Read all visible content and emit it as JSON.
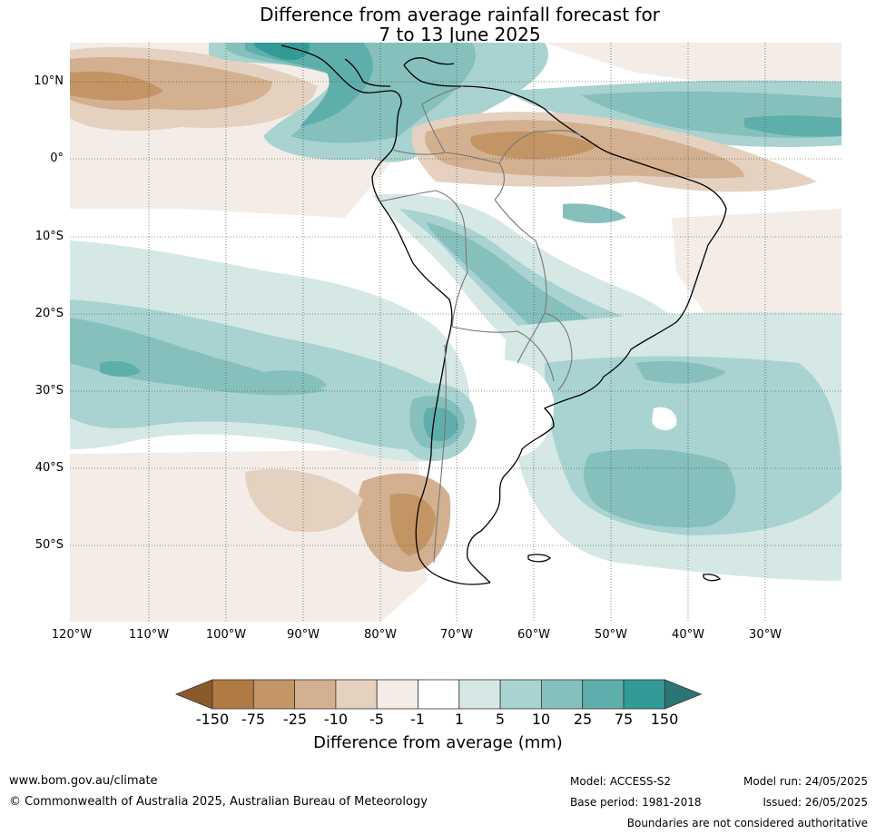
{
  "title": {
    "line1": "Difference from average rainfall forecast for",
    "line2": "7 to 13 June 2025"
  },
  "map": {
    "lat_labels": [
      "10°N",
      "0°",
      "10°S",
      "20°S",
      "30°S",
      "40°S",
      "50°S"
    ],
    "lon_labels": [
      "120°W",
      "110°W",
      "100°W",
      "90°W",
      "80°W",
      "70°W",
      "60°W",
      "50°W",
      "40°W",
      "30°W"
    ]
  },
  "colorbar": {
    "ticks": [
      "-150",
      "-75",
      "-25",
      "-10",
      "-5",
      "-1",
      "1",
      "5",
      "10",
      "25",
      "75",
      "150"
    ],
    "colors": [
      "#8b5a2b",
      "#b07b42",
      "#c39565",
      "#d3b08f",
      "#e5d1c0",
      "#f4ede7",
      "#ffffff",
      "#d5e8e6",
      "#a8d3d0",
      "#86c0bd",
      "#5eafab",
      "#339a97",
      "#2b7574"
    ],
    "label": "Difference from average (mm)"
  },
  "footer": {
    "website": "www.bom.gov.au/climate",
    "copyright": "© Commonwealth of Australia 2025, Australian Bureau of Meteorology",
    "model": "Model: ACCESS-S2",
    "model_run": "Model run: 24/05/2025",
    "base_period": "Base period: 1981-2018",
    "issued": "Issued: 26/05/2025",
    "disclaimer": "Boundaries are not considered authoritative"
  }
}
